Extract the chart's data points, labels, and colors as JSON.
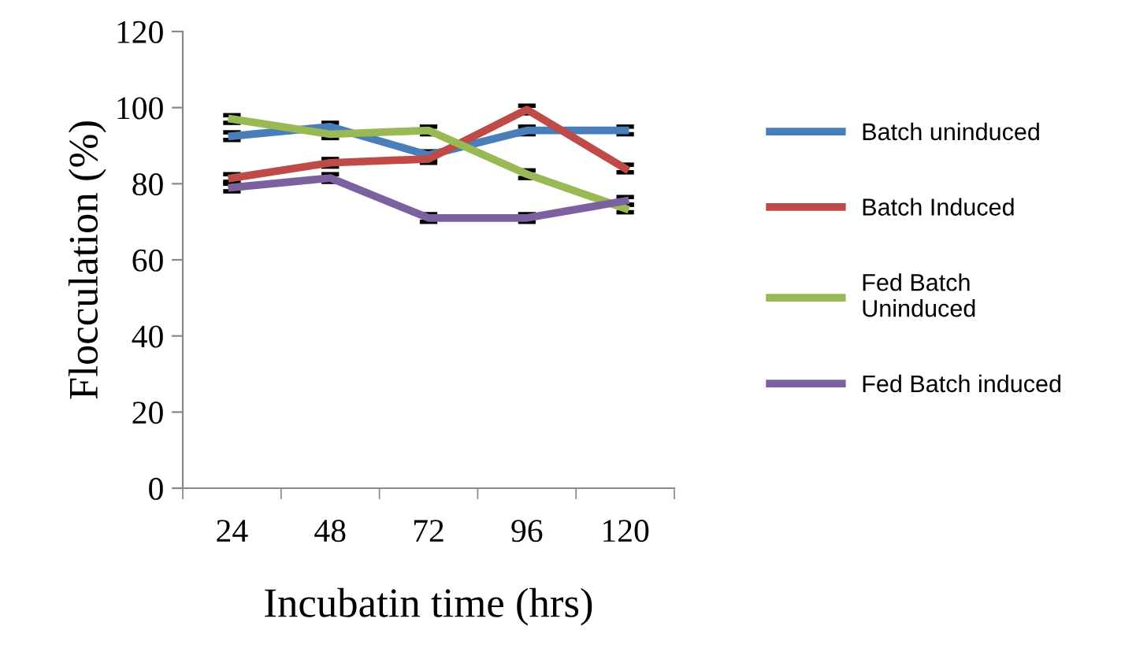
{
  "chart_data": {
    "type": "line",
    "xlabel": "Incubatin time (hrs)",
    "ylabel": "Flocculation (%)",
    "categories": [
      "24",
      "48",
      "72",
      "96",
      "120"
    ],
    "ylim": [
      0,
      120
    ],
    "yticks": [
      0,
      20,
      40,
      60,
      80,
      100,
      120
    ],
    "grid": false,
    "legend": "right",
    "marker": "none",
    "line_style": "solid",
    "series": [
      {
        "name": "Batch uninduced",
        "color": "#4a7ebb",
        "values": [
          92.5,
          95,
          87.5,
          94,
          94
        ],
        "errors": [
          1,
          1,
          1,
          1,
          1
        ]
      },
      {
        "name": "Batch Induced",
        "color": "#be4b48",
        "values": [
          81.5,
          85.5,
          86.5,
          99.5,
          84
        ],
        "errors": [
          1,
          1,
          1,
          1,
          1
        ]
      },
      {
        "name": "Fed Batch\nUninduced",
        "color": "#98b954",
        "values": [
          97,
          93,
          94,
          82.5,
          73.5
        ],
        "errors": [
          1,
          1,
          1,
          1,
          1
        ]
      },
      {
        "name": "Fed Batch induced",
        "color": "#7d60a0",
        "values": [
          79,
          81.5,
          71,
          71,
          75.5
        ],
        "errors": [
          1,
          1,
          1,
          1,
          1
        ]
      }
    ]
  }
}
